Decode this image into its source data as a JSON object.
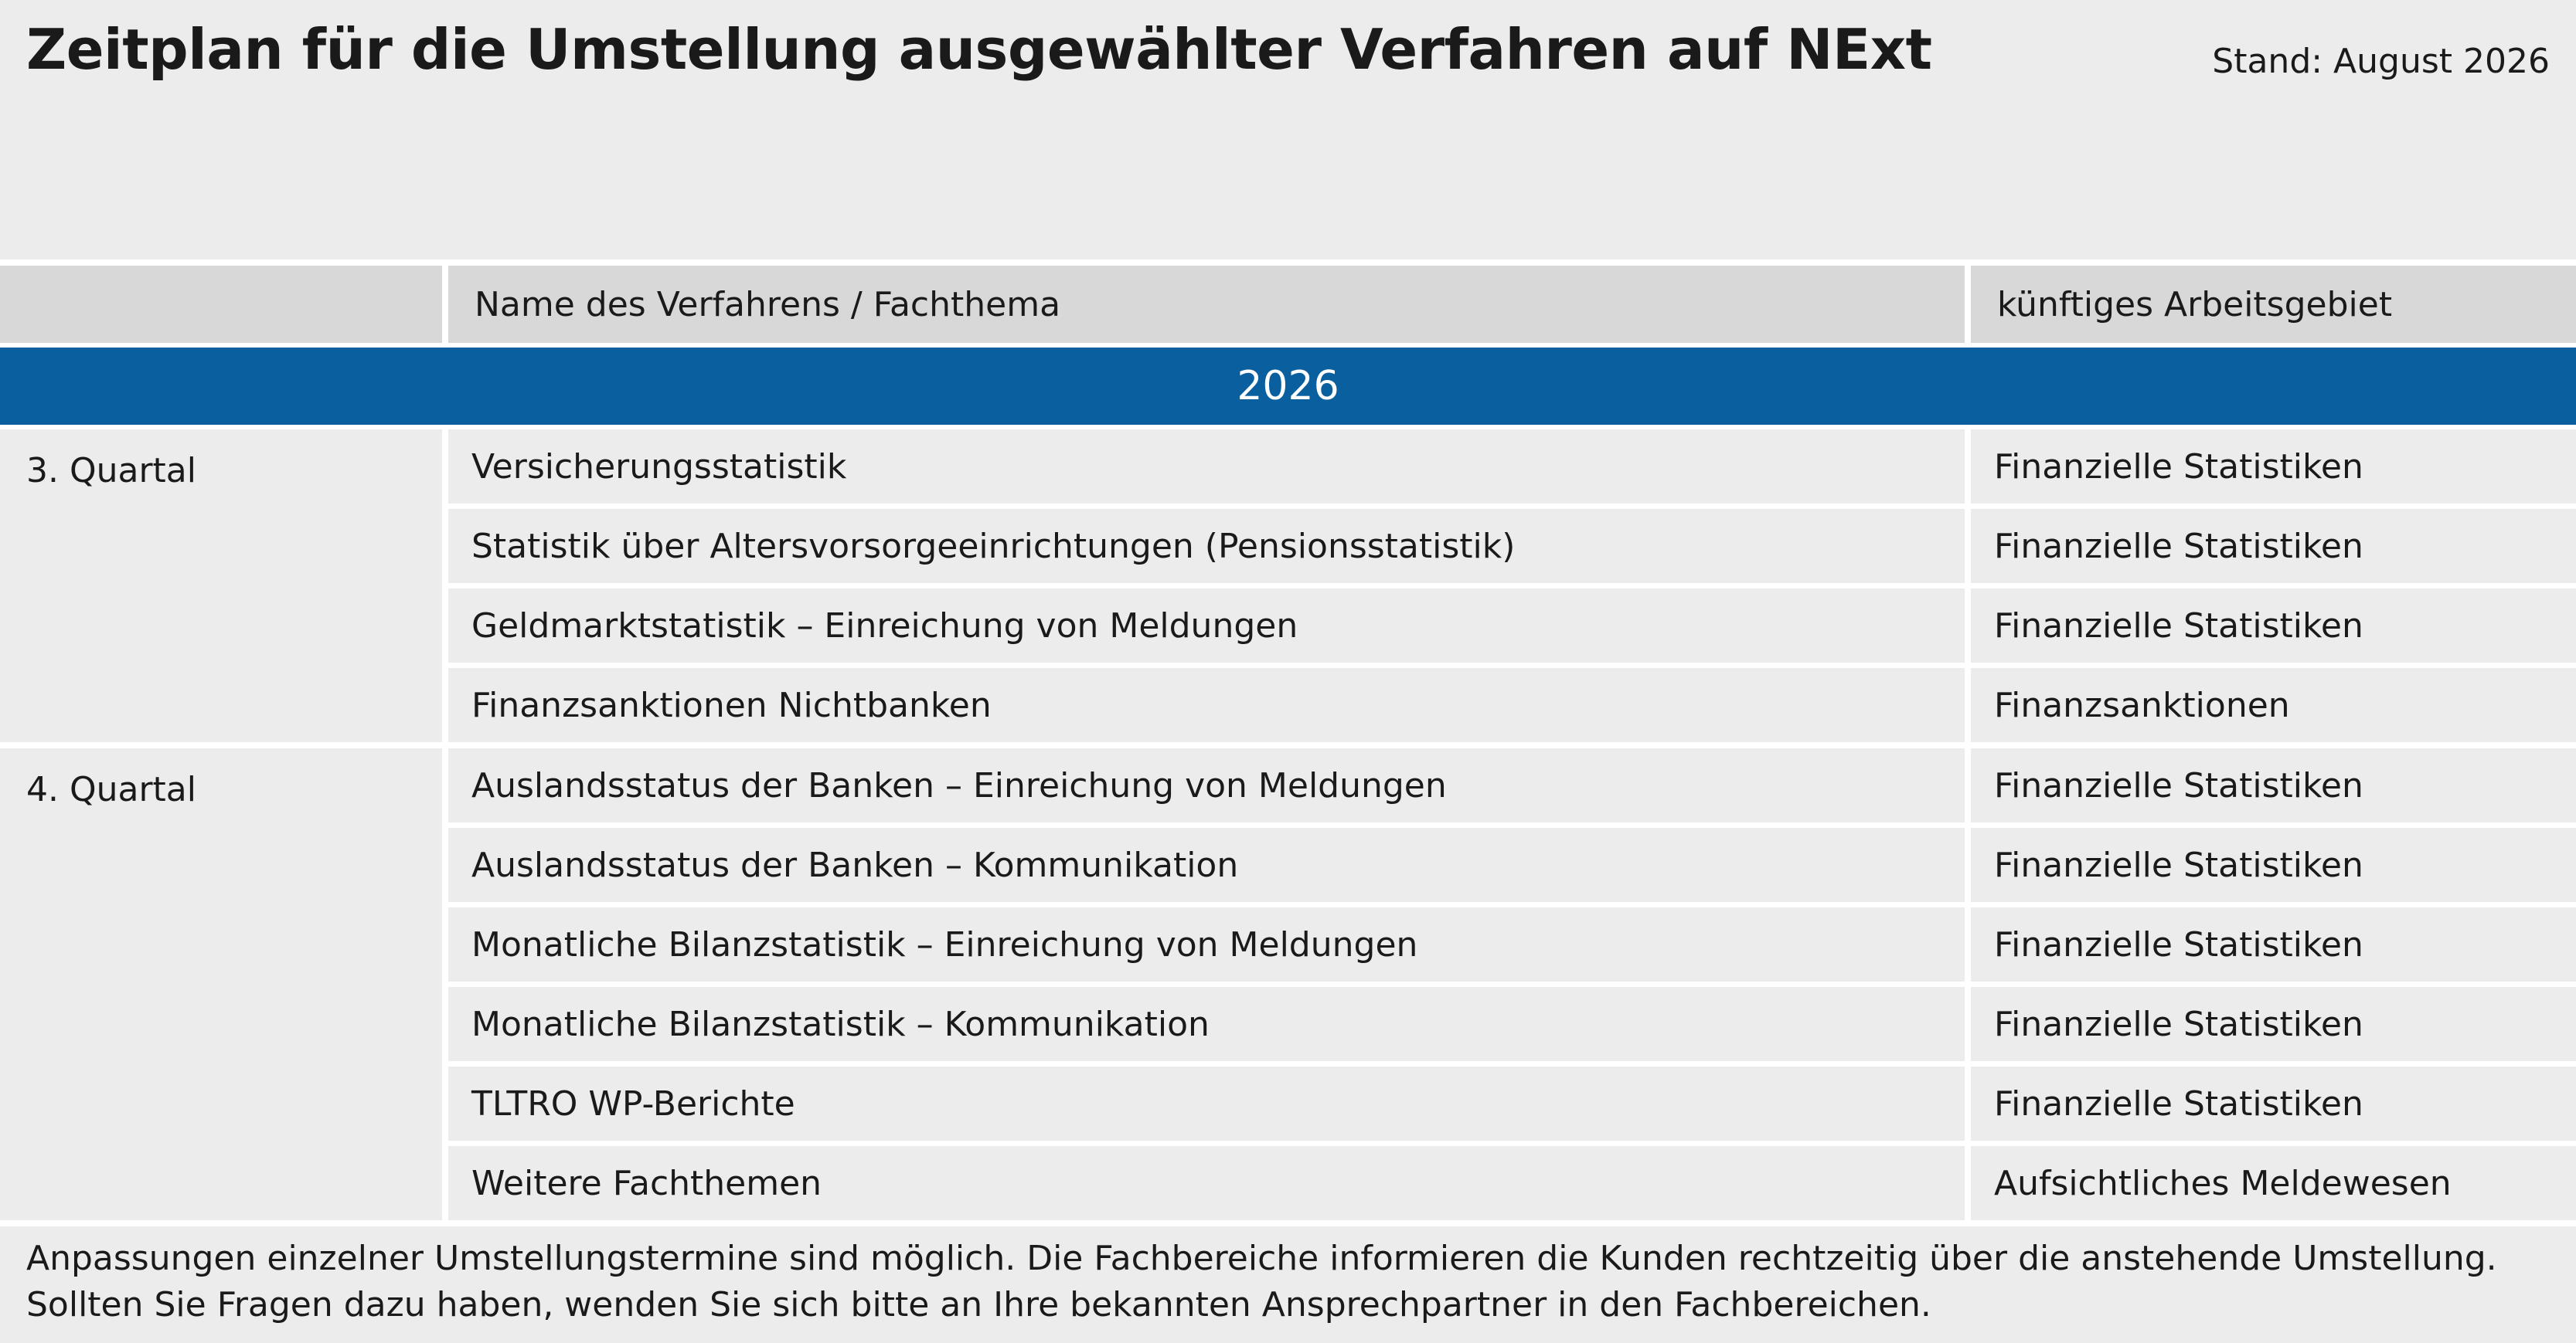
{
  "title": "Zeitplan für die Umstellung ausgewählter Verfahren auf NExt",
  "stand": "Stand: August 2026",
  "header": {
    "col1": "",
    "col2": "Name des Verfahrens / Fachthema",
    "col3": "künftiges Arbeitsgebiet"
  },
  "year": "2026",
  "groups": [
    {
      "label": "3. Quartal",
      "items": [
        {
          "name": "Versicherungsstatistik",
          "area": "Finanzielle Statistiken"
        },
        {
          "name": "Statistik über Altersvorsorgeeinrichtungen (Pensionsstatistik)",
          "area": "Finanzielle Statistiken"
        },
        {
          "name": "Geldmarktstatistik – Einreichung von Meldungen",
          "area": "Finanzielle Statistiken"
        },
        {
          "name": "Finanzsanktionen Nichtbanken",
          "area": "Finanzsanktionen"
        }
      ]
    },
    {
      "label": "4. Quartal",
      "items": [
        {
          "name": "Auslandsstatus der Banken – Einreichung von Meldungen",
          "area": "Finanzielle Statistiken"
        },
        {
          "name": "Auslandsstatus der Banken – Kommunikation",
          "area": "Finanzielle Statistiken"
        },
        {
          "name": "Monatliche Bilanzstatistik – Einreichung von Meldungen",
          "area": "Finanzielle Statistiken"
        },
        {
          "name": "Monatliche Bilanzstatistik – Kommunikation",
          "area": "Finanzielle Statistiken"
        },
        {
          "name": "TLTRO WP-Berichte",
          "area": "Finanzielle Statistiken"
        },
        {
          "name": "Weitere Fachthemen",
          "area": "Aufsichtliches Meldewesen"
        }
      ]
    }
  ],
  "footnote": {
    "line1": "Anpassungen einzelner Umstellungstermine sind möglich. Die Fachbereiche informieren die Kunden rechtzeitig über die anstehende Umstellung.",
    "line2": "Sollten Sie Fragen dazu haben, wenden Sie sich bitte an Ihre bekannten Ansprechpartner in den Fachbereichen."
  },
  "colors": {
    "background": "#ececec",
    "header": "#d8d8d8",
    "year_bar": "#0a5f9e",
    "separator": "#ffffff"
  }
}
